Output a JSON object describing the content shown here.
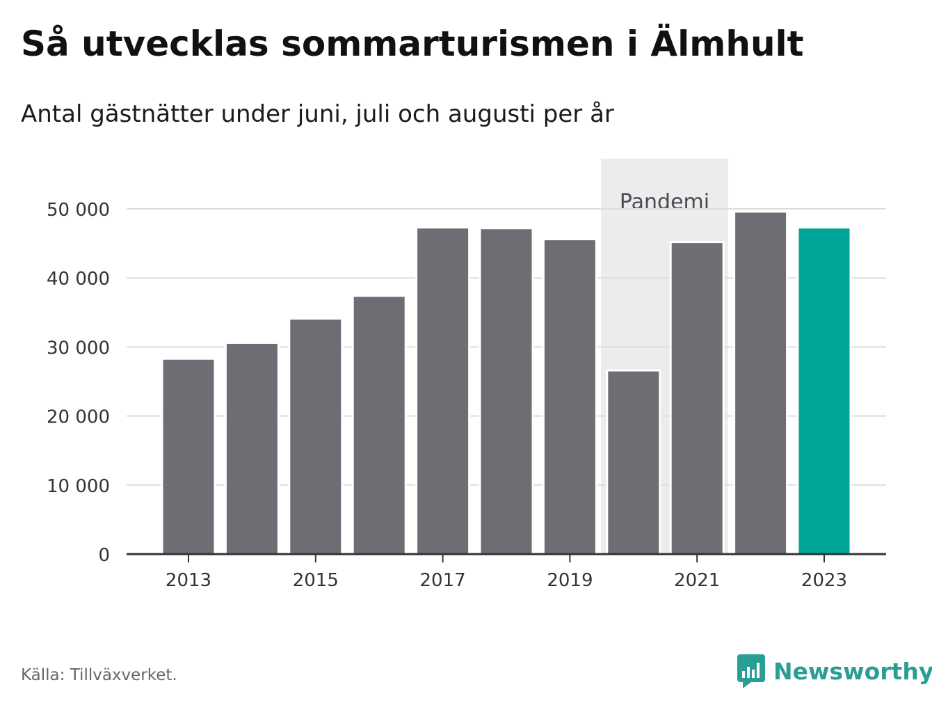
{
  "title": "Så utvecklas sommarturismen i Älmhult",
  "subtitle": "Antal gästnätter under juni, juli och augusti per år",
  "source": "Källa: Tillväxverket.",
  "brand": {
    "name": "Newsworthy",
    "icon": "newsworthy-logo-icon"
  },
  "colors": {
    "bar": "#6e6d73",
    "highlight": "#00a69a",
    "band": "#ececec",
    "grid": "#dddddd",
    "axis": "#333333",
    "text": "#333333",
    "brand": "#2a9d94"
  },
  "chart_data": {
    "type": "bar",
    "categories": [
      "2013",
      "2014",
      "2015",
      "2016",
      "2017",
      "2018",
      "2019",
      "2020",
      "2021",
      "2022",
      "2023"
    ],
    "values": [
      28300,
      30600,
      34100,
      37400,
      47300,
      47200,
      45600,
      26600,
      45200,
      49600,
      47300
    ],
    "highlight_category": "2023",
    "x_tick_labels": [
      "2013",
      "2015",
      "2017",
      "2019",
      "2021",
      "2023"
    ],
    "y_ticks": [
      0,
      10000,
      20000,
      30000,
      40000,
      50000
    ],
    "y_tick_labels": [
      "0",
      "10 000",
      "20 000",
      "30 000",
      "40 000",
      "50 000"
    ],
    "ylim": [
      0,
      57000
    ],
    "grid": true,
    "annotation": {
      "label": "Pandemi",
      "from": "2020",
      "to": "2021"
    }
  }
}
